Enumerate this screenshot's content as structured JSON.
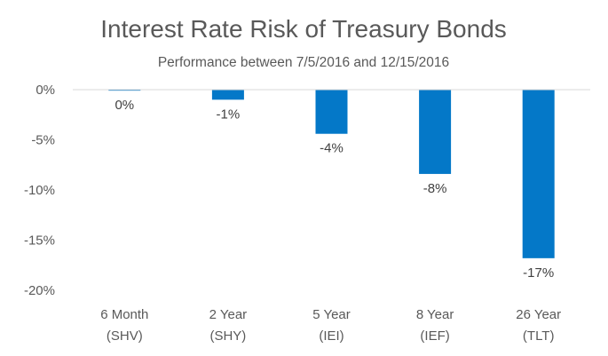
{
  "chart_data": {
    "type": "bar",
    "title": "Interest Rate Risk of Treasury Bonds",
    "subtitle": "Performance between 7/5/2016 and 12/15/2016",
    "categories": [
      [
        "6 Month",
        "(SHV)"
      ],
      [
        "2 Year",
        "(SHY)"
      ],
      [
        "5 Year",
        "(IEI)"
      ],
      [
        "8 Year",
        "(IEF)"
      ],
      [
        "26 Year",
        "(TLT)"
      ]
    ],
    "values": [
      -0.1,
      -1.0,
      -4.4,
      -8.4,
      -16.8
    ],
    "data_labels": [
      "0%",
      "-1%",
      "-4%",
      "-8%",
      "-17%"
    ],
    "ylim": [
      -20,
      0
    ],
    "yticks": [
      0,
      -5,
      -10,
      -15,
      -20
    ],
    "ytick_labels": [
      "0%",
      "-5%",
      "-10%",
      "-15%",
      "-20%"
    ],
    "xlabel": "",
    "ylabel": "",
    "grid": false,
    "legend": "none",
    "bar_color": "#0478c8",
    "axis_color": "#d9d9d9"
  }
}
